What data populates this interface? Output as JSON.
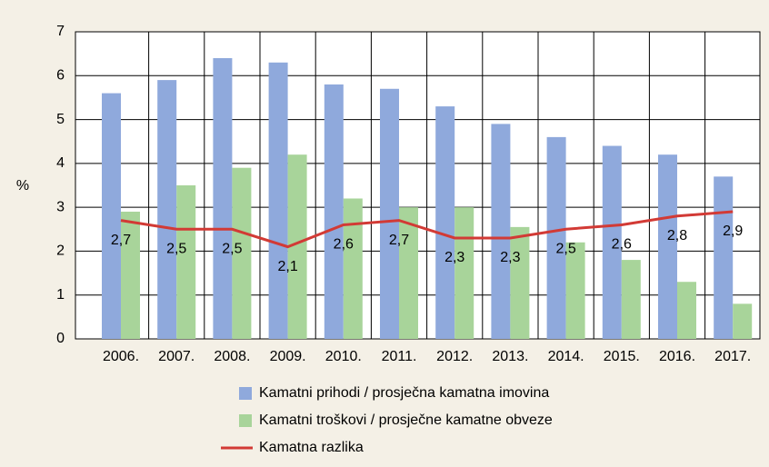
{
  "chart_data": {
    "type": "bar+line",
    "ylabel": "%",
    "categories": [
      "2006.",
      "2007.",
      "2008.",
      "2009.",
      "2010.",
      "2011.",
      "2012.",
      "2013.",
      "2014.",
      "2015.",
      "2016.",
      "2017."
    ],
    "series": [
      {
        "name": "Kamatni prihodi / prosječna kamatna imovina",
        "color": "#8fa9dc",
        "kind": "bar",
        "values": [
          5.6,
          5.9,
          6.4,
          6.3,
          5.8,
          5.7,
          5.3,
          4.9,
          4.6,
          4.4,
          4.2,
          3.7
        ]
      },
      {
        "name": "Kamatni troškovi / prosječne kamatne obveze",
        "color": "#a8d49a",
        "kind": "bar",
        "values": [
          2.9,
          3.5,
          3.9,
          4.2,
          3.2,
          3.0,
          3.0,
          2.55,
          2.2,
          1.8,
          1.3,
          0.8
        ]
      },
      {
        "name": "Kamatna razlika",
        "color": "#d23a35",
        "kind": "line",
        "values": [
          2.7,
          2.5,
          2.5,
          2.1,
          2.6,
          2.7,
          2.3,
          2.3,
          2.5,
          2.6,
          2.8,
          2.9
        ],
        "value_labels": [
          "2,7",
          "2,5",
          "2,5",
          "2,1",
          "2,6",
          "2,7",
          "2,3",
          "2,3",
          "2,5",
          "2,6",
          "2,8",
          "2,9"
        ]
      }
    ],
    "ylim": [
      0,
      7
    ],
    "yticks": [
      0,
      1,
      2,
      3,
      4,
      5,
      6,
      7
    ],
    "grid": true
  }
}
